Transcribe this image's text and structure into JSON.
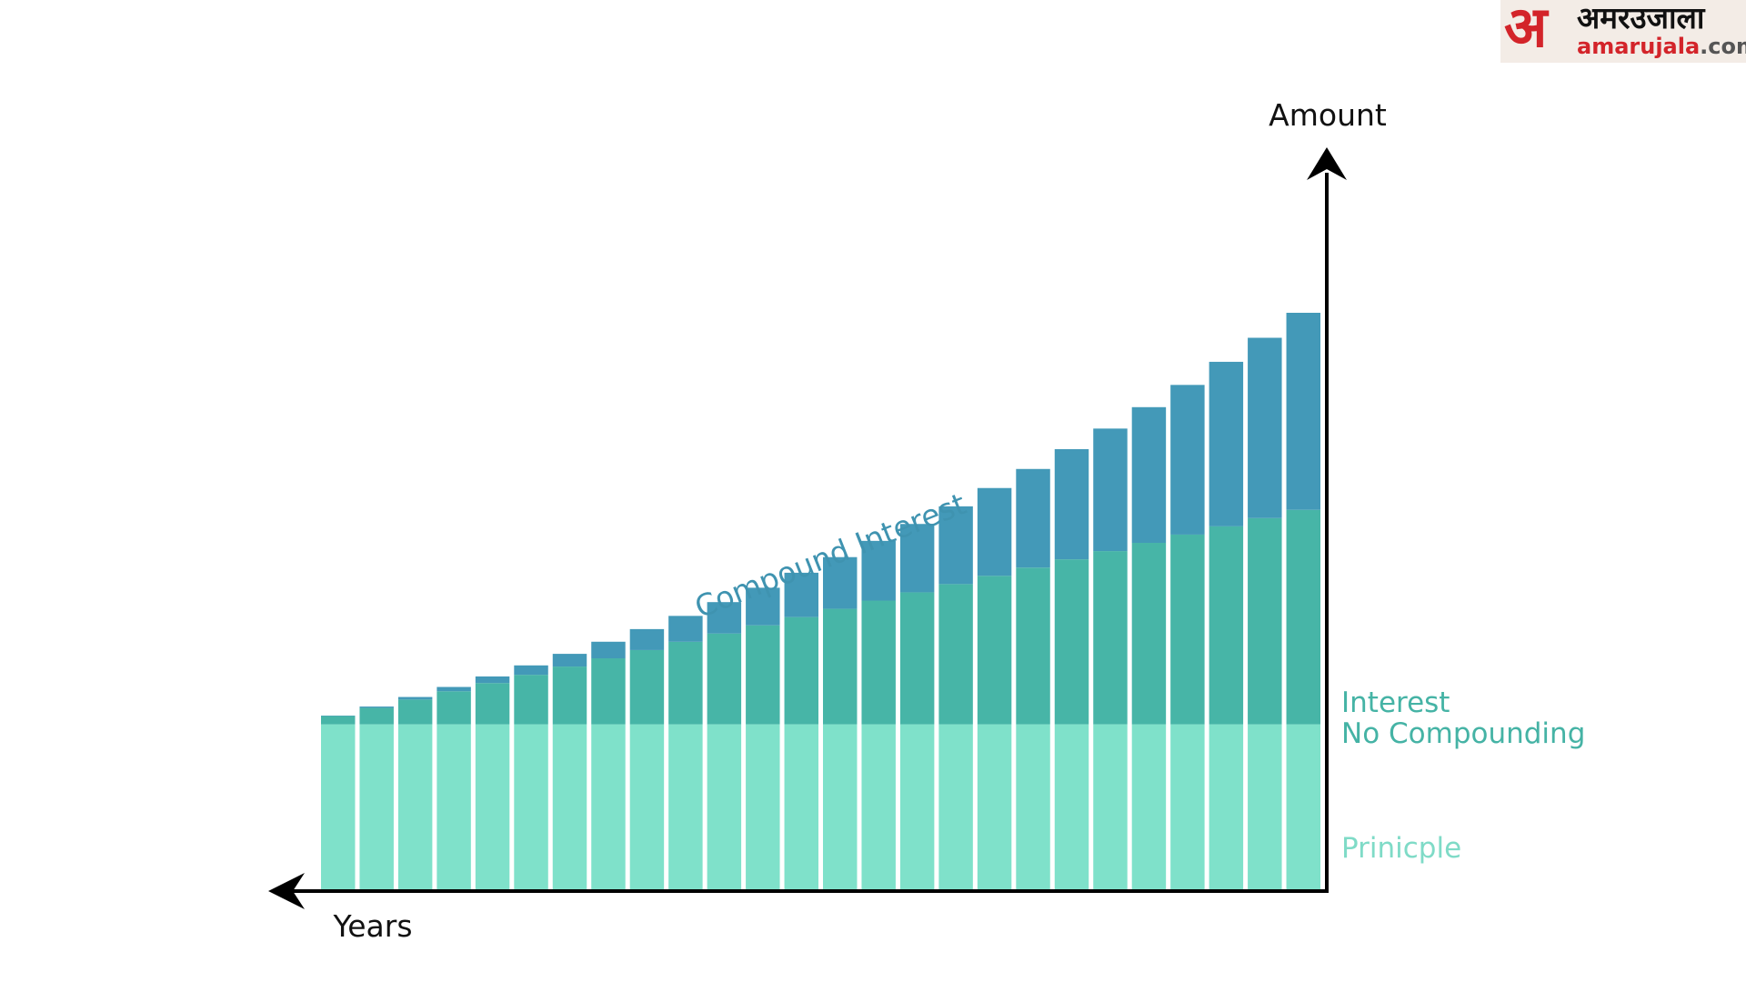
{
  "brand": {
    "mark": "अ",
    "name_hindi": "अमरउजाला",
    "url_main": "amarujala",
    "url_tld": ".com"
  },
  "chart_data": {
    "type": "bar",
    "stacked": true,
    "title": "",
    "xlabel": "Years",
    "ylabel": "Amount",
    "x_direction": "right-to-left",
    "bar_count": 26,
    "series": [
      {
        "name": "Prinicple",
        "color": "#7fe1ca",
        "values": [
          1,
          1,
          1,
          1,
          1,
          1,
          1,
          1,
          1,
          1,
          1,
          1,
          1,
          1,
          1,
          1,
          1,
          1,
          1,
          1,
          1,
          1,
          1,
          1,
          1,
          1
        ]
      },
      {
        "name": "Interest\nNo Compounding",
        "color": "#47b5a7",
        "values": [
          0.05,
          0.1,
          0.15,
          0.2,
          0.25,
          0.3,
          0.35,
          0.4,
          0.45,
          0.5,
          0.55,
          0.6,
          0.65,
          0.7,
          0.75,
          0.8,
          0.85,
          0.9,
          0.95,
          1.0,
          1.05,
          1.1,
          1.15,
          1.2,
          1.25,
          1.3
        ]
      },
      {
        "name": "Compound Interest",
        "color": "#4399b8",
        "values": [
          0.0025,
          0.0076,
          0.0155,
          0.0263,
          0.0401,
          0.0571,
          0.0771,
          0.1005,
          0.1271,
          0.1571,
          0.1907,
          0.2279,
          0.2687,
          0.3134,
          0.362,
          0.4145,
          0.4713,
          0.5323,
          0.5978,
          0.6679,
          0.7427,
          0.8225,
          0.9073,
          0.9974,
          1.0931,
          1.1946
        ]
      }
    ],
    "series_labels": {
      "principle": "Prinicple",
      "interest_line1": "Interest",
      "interest_line2": "No Compounding",
      "compound": "Compound Interest"
    },
    "colors": {
      "principle": "#7fe1ca",
      "interest": "#47b5a7",
      "compound": "#4399b8",
      "interest_label": "#45b3a5",
      "principle_label": "#7fdbc7",
      "compound_label": "#3f93b0",
      "axis": "#000000"
    },
    "ylim": [
      0,
      4.2
    ],
    "grid": false,
    "legend": "inline-right"
  }
}
